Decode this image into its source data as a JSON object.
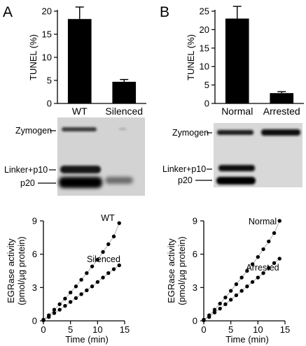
{
  "panels": [
    {
      "letter": "A"
    },
    {
      "letter": "B"
    }
  ],
  "chart_data": [
    {
      "id": "A-bar",
      "type": "bar",
      "categories": [
        "WT",
        "Silenced"
      ],
      "values": [
        18.3,
        4.7
      ],
      "errors": [
        2.6,
        0.5
      ],
      "ylabel": "TUNEL (%)",
      "xlabel": "",
      "ylim": [
        0,
        20
      ],
      "yticks": [
        0,
        5,
        10,
        15,
        20
      ],
      "color": "#000000"
    },
    {
      "id": "B-bar",
      "type": "bar",
      "categories": [
        "Normal",
        "Arrested"
      ],
      "values": [
        23.0,
        2.8
      ],
      "errors": [
        3.3,
        0.4
      ],
      "ylabel": "TUNEL (%)",
      "xlabel": "",
      "ylim": [
        0,
        25
      ],
      "yticks": [
        0,
        5,
        10,
        15,
        20,
        25
      ],
      "color": "#000000"
    },
    {
      "id": "A-scatter",
      "type": "scatter",
      "xlabel": "Time (min)",
      "ylabel": "EGRase activity\n(pmol/µg protein)",
      "xlim": [
        0,
        15
      ],
      "ylim": [
        0,
        9
      ],
      "xticks": [
        0,
        5,
        10,
        15
      ],
      "yticks": [
        0,
        3,
        6,
        9
      ],
      "series": [
        {
          "name": "WT",
          "x": [
            0,
            1,
            2,
            3,
            4,
            5,
            6,
            7,
            8,
            9,
            10,
            11,
            12,
            13,
            14
          ],
          "y": [
            0.1,
            0.5,
            1.0,
            1.5,
            2.0,
            2.55,
            3.1,
            3.7,
            4.3,
            4.9,
            5.5,
            6.2,
            6.9,
            7.6,
            8.8
          ]
        },
        {
          "name": "Silenced",
          "x": [
            0,
            1,
            2,
            3,
            4,
            5,
            6,
            7,
            8,
            9,
            10,
            11,
            12,
            13,
            14
          ],
          "y": [
            0.05,
            0.35,
            0.7,
            1.0,
            1.35,
            1.7,
            2.05,
            2.4,
            2.75,
            3.1,
            3.5,
            3.9,
            4.3,
            4.65,
            5.0
          ]
        }
      ]
    },
    {
      "id": "B-scatter",
      "type": "scatter",
      "xlabel": "Time (min)",
      "ylabel": "EGRase activity\n(pmol/µg protein)",
      "xlim": [
        0,
        15
      ],
      "ylim": [
        0,
        9
      ],
      "xticks": [
        0,
        5,
        10,
        15
      ],
      "yticks": [
        0,
        3,
        6,
        9
      ],
      "series": [
        {
          "name": "Normal",
          "x": [
            0,
            1,
            2,
            3,
            4,
            5,
            6,
            7,
            8,
            9,
            10,
            11,
            12,
            13,
            14
          ],
          "y": [
            0.1,
            0.5,
            1.0,
            1.55,
            2.1,
            2.7,
            3.3,
            3.9,
            4.5,
            5.1,
            5.75,
            6.45,
            7.15,
            7.9,
            9.0
          ]
        },
        {
          "name": "Arrested",
          "x": [
            0,
            1,
            2,
            3,
            4,
            5,
            6,
            7,
            8,
            9,
            10,
            11,
            12,
            13,
            14
          ],
          "y": [
            0.05,
            0.35,
            0.75,
            1.1,
            1.5,
            1.9,
            2.3,
            2.7,
            3.1,
            3.5,
            3.9,
            4.3,
            4.75,
            5.2,
            5.6
          ]
        }
      ]
    }
  ],
  "blots": [
    {
      "labels": [
        "Zymogen",
        "Linker+p10",
        "p20"
      ]
    },
    {
      "labels": [
        "Zymogen",
        "Linker+p10",
        "p20"
      ]
    }
  ]
}
